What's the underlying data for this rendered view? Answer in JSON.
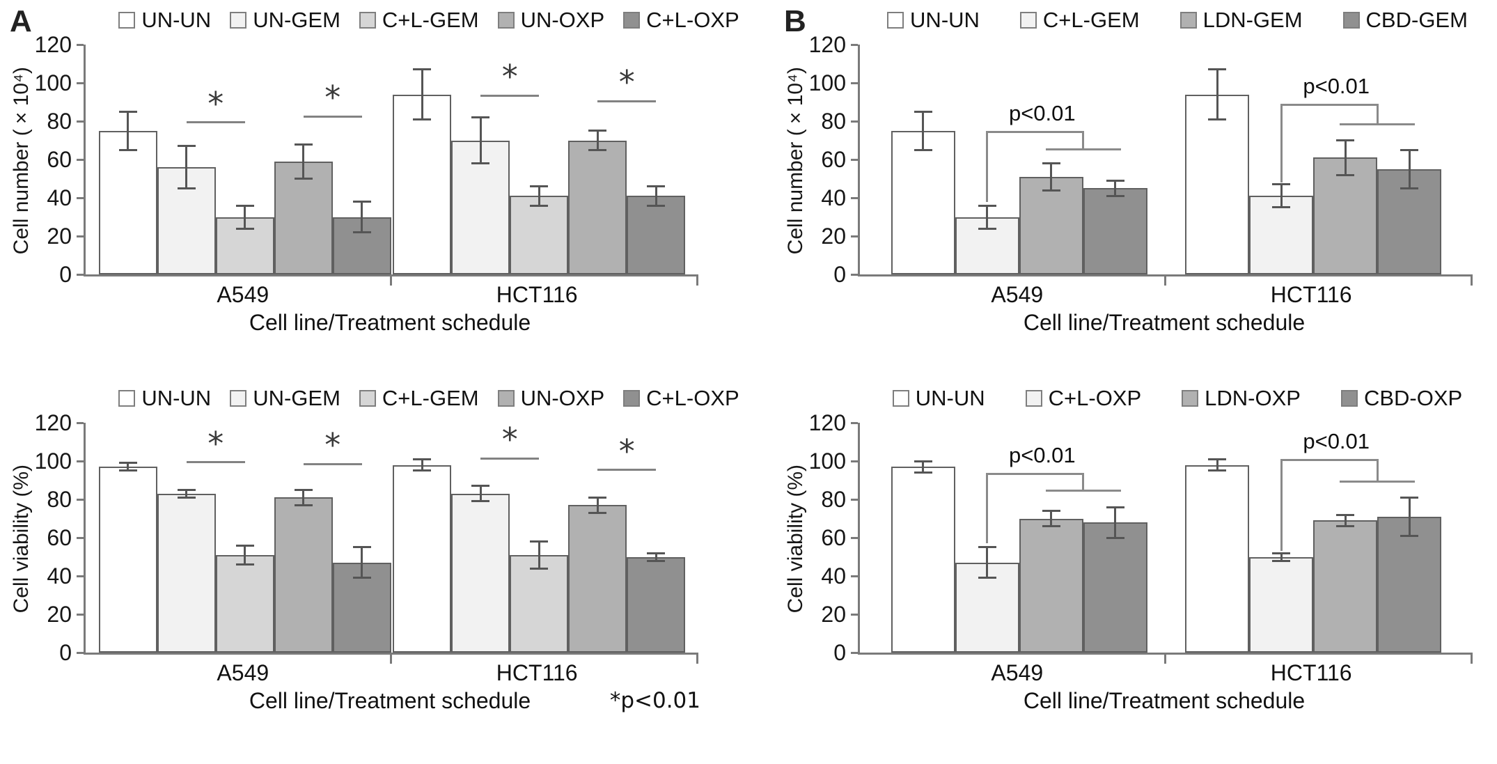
{
  "figure": {
    "panel_a_label": "A",
    "panel_b_label": "B"
  },
  "chart_data": [
    {
      "type": "bar",
      "panel": "A",
      "position": "top",
      "ylabel": "Cell number (×10⁴)",
      "xlabel": "Cell line/Treatment schedule",
      "ylim": [
        0,
        120
      ],
      "yticks": [
        0,
        20,
        40,
        60,
        80,
        100,
        120
      ],
      "grid": false,
      "legend_position": "top",
      "categories": [
        "A549",
        "HCT116"
      ],
      "series": [
        {
          "name": "UN-UN",
          "color": "#ffffff",
          "values": [
            75,
            94
          ],
          "errors": [
            10,
            13
          ]
        },
        {
          "name": "UN-GEM",
          "color": "#f2f2f2",
          "values": [
            56,
            70
          ],
          "errors": [
            11,
            12
          ]
        },
        {
          "name": "C+L-GEM",
          "color": "#d6d6d6",
          "values": [
            30,
            41
          ],
          "errors": [
            6,
            5
          ]
        },
        {
          "name": "UN-OXP",
          "color": "#b1b1b1",
          "values": [
            59,
            70
          ],
          "errors": [
            9,
            5
          ]
        },
        {
          "name": "C+L-OXP",
          "color": "#909090",
          "values": [
            30,
            41
          ],
          "errors": [
            8,
            5
          ]
        }
      ],
      "annotations": [
        {
          "kind": "star-line",
          "group": 0,
          "bars": [
            1,
            2
          ],
          "y": 80,
          "label": "*"
        },
        {
          "kind": "star-line",
          "group": 0,
          "bars": [
            3,
            4
          ],
          "y": 83,
          "label": "*"
        },
        {
          "kind": "star-line",
          "group": 1,
          "bars": [
            1,
            2
          ],
          "y": 94,
          "label": "*"
        },
        {
          "kind": "star-line",
          "group": 1,
          "bars": [
            3,
            4
          ],
          "y": 91,
          "label": "*"
        }
      ]
    },
    {
      "type": "bar",
      "panel": "A",
      "position": "bottom",
      "ylabel": "Cell viability (%)",
      "xlabel": "Cell line/Treatment schedule",
      "footnote": "*p<0.01",
      "ylim": [
        0,
        120
      ],
      "yticks": [
        0,
        20,
        40,
        60,
        80,
        100,
        120
      ],
      "grid": false,
      "legend_position": "top",
      "categories": [
        "A549",
        "HCT116"
      ],
      "series": [
        {
          "name": "UN-UN",
          "color": "#ffffff",
          "values": [
            97,
            98
          ],
          "errors": [
            2,
            3
          ]
        },
        {
          "name": "UN-GEM",
          "color": "#f2f2f2",
          "values": [
            83,
            83
          ],
          "errors": [
            2,
            4
          ]
        },
        {
          "name": "C+L-GEM",
          "color": "#d6d6d6",
          "values": [
            51,
            51
          ],
          "errors": [
            5,
            7
          ]
        },
        {
          "name": "UN-OXP",
          "color": "#b1b1b1",
          "values": [
            81,
            77
          ],
          "errors": [
            4,
            4
          ]
        },
        {
          "name": "C+L-OXP",
          "color": "#909090",
          "values": [
            47,
            50
          ],
          "errors": [
            8,
            2
          ]
        }
      ],
      "annotations": [
        {
          "kind": "star-line",
          "group": 0,
          "bars": [
            1,
            2
          ],
          "y": 100,
          "label": "*"
        },
        {
          "kind": "star-line",
          "group": 0,
          "bars": [
            3,
            4
          ],
          "y": 99,
          "label": "*"
        },
        {
          "kind": "star-line",
          "group": 1,
          "bars": [
            1,
            2
          ],
          "y": 102,
          "label": "*"
        },
        {
          "kind": "star-line",
          "group": 1,
          "bars": [
            3,
            4
          ],
          "y": 96,
          "label": "*"
        }
      ]
    },
    {
      "type": "bar",
      "panel": "B",
      "position": "top",
      "ylabel": "Cell number (×10⁴)",
      "xlabel": "Cell line/Treatment schedule",
      "ylim": [
        0,
        120
      ],
      "yticks": [
        0,
        20,
        40,
        60,
        80,
        100,
        120
      ],
      "grid": false,
      "legend_position": "top",
      "categories": [
        "A549",
        "HCT116"
      ],
      "series": [
        {
          "name": "UN-UN",
          "color": "#ffffff",
          "values": [
            75,
            94
          ],
          "errors": [
            10,
            13
          ]
        },
        {
          "name": "C+L-GEM",
          "color": "#f2f2f2",
          "values": [
            30,
            41
          ],
          "errors": [
            6,
            6
          ]
        },
        {
          "name": "LDN-GEM",
          "color": "#b1b1b1",
          "values": [
            51,
            61
          ],
          "errors": [
            7,
            9
          ]
        },
        {
          "name": "CBD-GEM",
          "color": "#909090",
          "values": [
            45,
            55
          ],
          "errors": [
            4,
            10
          ]
        }
      ],
      "annotations": [
        {
          "kind": "bracket",
          "group": 0,
          "from": 1,
          "to": [
            2,
            3
          ],
          "y_start": 38,
          "y_top": 75,
          "y_low": 66,
          "label": "p<0.01"
        },
        {
          "kind": "bracket",
          "group": 1,
          "from": 1,
          "to": [
            2,
            3
          ],
          "y_start": 48,
          "y_top": 89,
          "y_low": 79,
          "label": "p<0.01"
        }
      ]
    },
    {
      "type": "bar",
      "panel": "B",
      "position": "bottom",
      "ylabel": "Cell viability (%)",
      "xlabel": "Cell line/Treatment schedule",
      "ylim": [
        0,
        120
      ],
      "yticks": [
        0,
        20,
        40,
        60,
        80,
        100,
        120
      ],
      "grid": false,
      "legend_position": "top",
      "categories": [
        "A549",
        "HCT116"
      ],
      "series": [
        {
          "name": "UN-UN",
          "color": "#ffffff",
          "values": [
            97,
            98
          ],
          "errors": [
            3,
            3
          ]
        },
        {
          "name": "C+L-OXP",
          "color": "#f2f2f2",
          "values": [
            47,
            50
          ],
          "errors": [
            8,
            2
          ]
        },
        {
          "name": "LDN-OXP",
          "color": "#b1b1b1",
          "values": [
            70,
            69
          ],
          "errors": [
            4,
            3
          ]
        },
        {
          "name": "CBD-OXP",
          "color": "#909090",
          "values": [
            68,
            71
          ],
          "errors": [
            8,
            10
          ]
        }
      ],
      "annotations": [
        {
          "kind": "bracket",
          "group": 0,
          "from": 1,
          "to": [
            2,
            3
          ],
          "y_start": 57,
          "y_top": 94,
          "y_low": 85,
          "label": "p<0.01"
        },
        {
          "kind": "bracket",
          "group": 1,
          "from": 1,
          "to": [
            2,
            3
          ],
          "y_start": 53,
          "y_top": 101,
          "y_low": 90,
          "label": "p<0.01"
        }
      ]
    }
  ]
}
